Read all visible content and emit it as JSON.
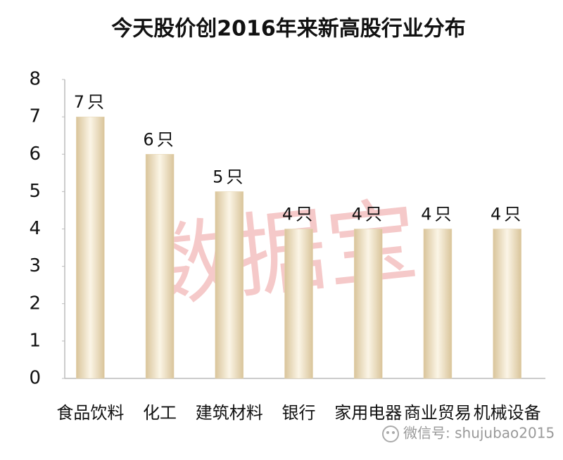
{
  "chart_data": {
    "type": "bar",
    "title": "今天股价创2016年来新高股行业分布",
    "categories": [
      "食品饮料",
      "化工",
      "建筑材料",
      "银行",
      "家用电器",
      "商业贸易",
      "机械设备"
    ],
    "values": [
      7,
      6,
      5,
      4,
      4,
      4,
      4
    ],
    "value_labels": [
      "7只",
      "6只",
      "5只",
      "4只",
      "4只",
      "4只",
      "4只"
    ],
    "color": "#e6d6b2",
    "ylim": [
      0,
      8
    ],
    "yticks": [
      0,
      1,
      2,
      3,
      4,
      5,
      6,
      7,
      8
    ],
    "grid": false,
    "watermark": "数据宝",
    "source": "微信号: shujubao2015"
  }
}
